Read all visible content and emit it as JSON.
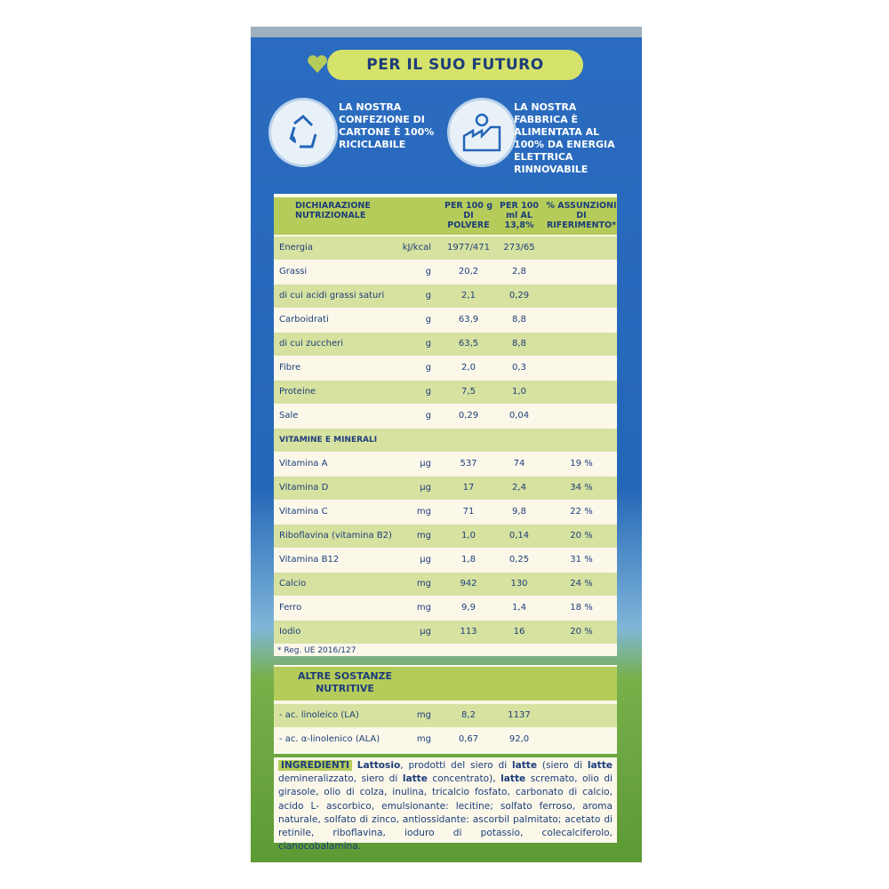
{
  "banner": "PER IL SUO FUTURO",
  "claims": [
    "LA NOSTRA CONFEZIONE DI CARTONE È 100% RICICLABILE",
    "LA NOSTRA FABBRICA È ALIMENTATA AL 100% DA ENERGIA ELETTRICA RINNOVABILE"
  ],
  "nutrition": {
    "headers": [
      "DICHIARAZIONE NUTRIZIONALE",
      "PER 100 g DI POLVERE",
      "PER 100 ml AL 13,8%",
      "% ASSUNZIONI DI RIFERIMENTO*"
    ],
    "rows": [
      [
        "Energia",
        "kJ/kcal",
        "1977/471",
        "273/65"
      ],
      [
        "Grassi",
        "g",
        "20,2",
        "2,8"
      ],
      [
        "di cui acidi grassi saturi",
        "g",
        "2,1",
        "0,29"
      ],
      [
        "Carboidrati",
        "g",
        "63,9",
        "8,8"
      ],
      [
        "di cui zuccheri",
        "g",
        "63,5",
        "8,8"
      ],
      [
        "Fibre",
        "g",
        "2,0",
        "0,3"
      ],
      [
        "Proteine",
        "g",
        "7,5",
        "1,0"
      ],
      [
        "Sale",
        "g",
        "0,29",
        "0,04"
      ],
      [
        "VITAMINE E MINERALI"
      ],
      [
        "Vitamina A",
        "µg",
        "537",
        "74",
        "19 %"
      ],
      [
        "Vitamina D",
        "µg",
        "17",
        "2,4",
        "34 %"
      ],
      [
        "Vitamina C",
        "mg",
        "71",
        "9,8",
        "22 %"
      ],
      [
        "Riboflavina (vitamina B2)",
        "mg",
        "1,0",
        "0,14",
        "20 %"
      ],
      [
        "Vitamina B12",
        "µg",
        "1,8",
        "0,25",
        "31 %"
      ],
      [
        "Calcio",
        "mg",
        "942",
        "130",
        "24 %"
      ],
      [
        "Ferro",
        "mg",
        "9,9",
        "1,4",
        "18 %"
      ],
      [
        "Iodio",
        "µg",
        "113",
        "16",
        "20 %"
      ]
    ],
    "footnote": "* Reg. UE 2016/127"
  },
  "other": {
    "title": "ALTRE SOSTANZE NUTRITIVE",
    "rows": [
      [
        "- ac. linoleico (LA)",
        "mg",
        "8,2",
        "1137"
      ],
      [
        "- ac. α-linolenico (ALA)",
        "mg",
        "0,67",
        "92,0"
      ]
    ]
  },
  "ingredients": {
    "label": "INGREDIENTI",
    "parts": [
      {
        "text": "Lattosio",
        "bold": true
      },
      {
        "text": ", prodotti del siero di "
      },
      {
        "text": "latte",
        "bold": true
      },
      {
        "text": " (siero di "
      },
      {
        "text": "latte",
        "bold": true
      },
      {
        "text": " demineralizzato, siero di "
      },
      {
        "text": "latte",
        "bold": true
      },
      {
        "text": " concentrato), "
      },
      {
        "text": "latte",
        "bold": true
      },
      {
        "text": " scremato, olio di girasole, olio di colza, inulina, tricalcio fosfato, carbonato di calcio, acido L- ascorbico, emulsionante: lecitine; solfato ferroso, aroma naturale, solfato di zinco, antiossidante: ascorbil palmitato; acetato di retinile, riboflavina, ioduro di potassio, colecalciferolo, cianocobalamina."
      }
    ]
  }
}
